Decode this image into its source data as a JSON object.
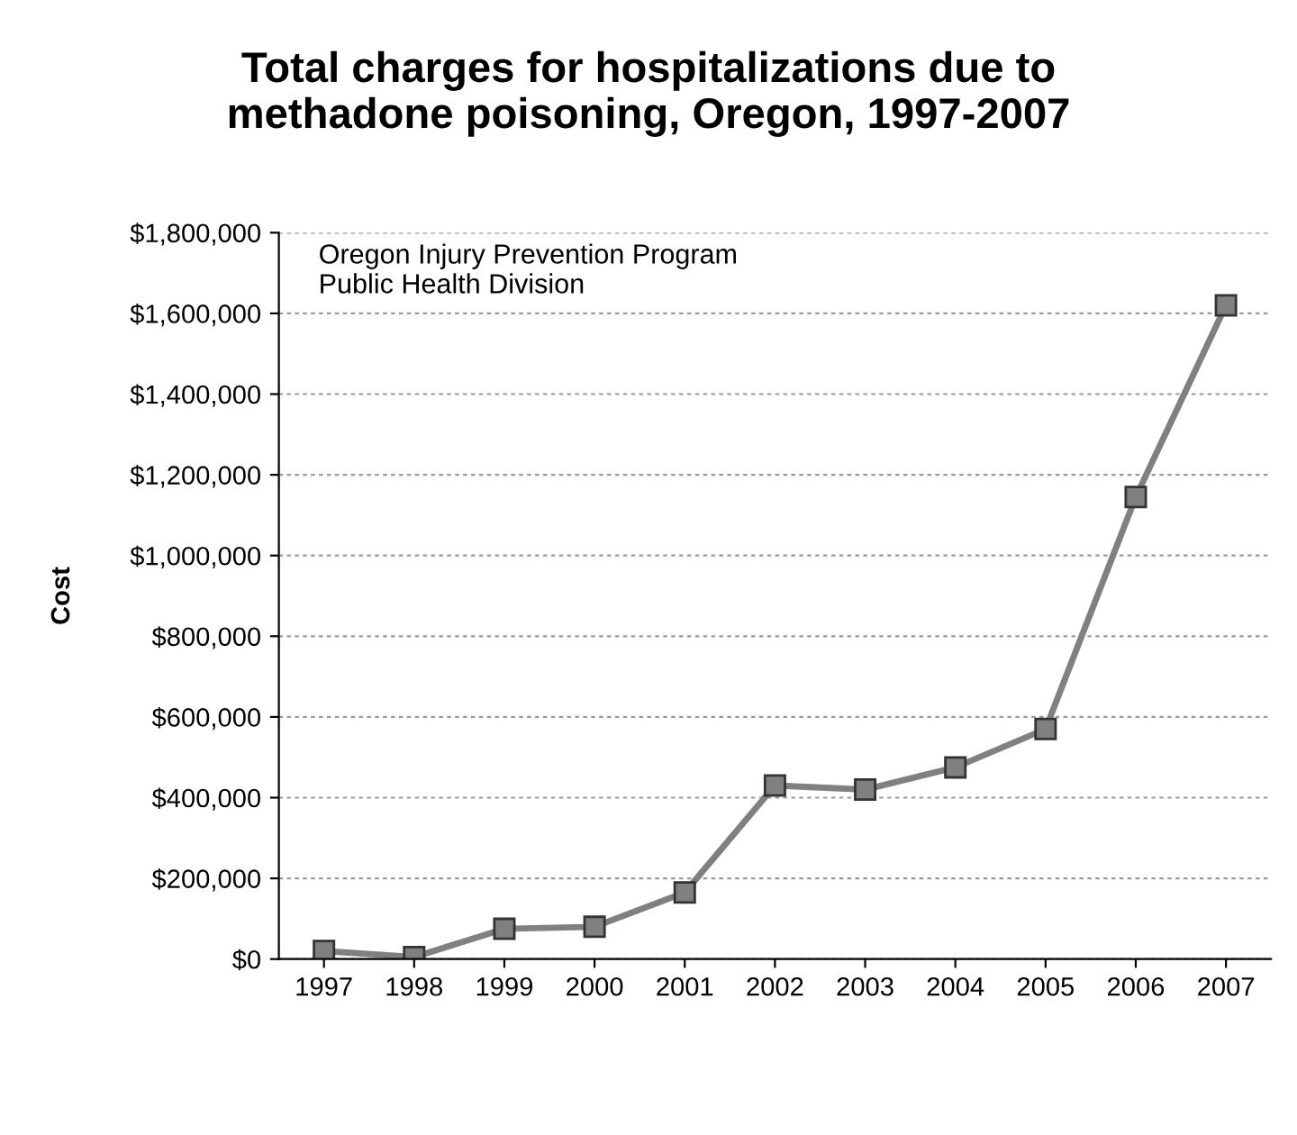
{
  "chart_data": {
    "type": "line",
    "title": "Total charges for hospitalizations due to\nmethadone poisoning, Oregon, 1997-2007",
    "ylabel": "Cost",
    "annotations": [
      "Oregon Injury Prevention Program\nPublic Health Division"
    ],
    "categories": [
      "1997",
      "1998",
      "1999",
      "2000",
      "2001",
      "2002",
      "2003",
      "2004",
      "2005",
      "2006",
      "2007"
    ],
    "series": [
      {
        "color": "#808080",
        "values": [
          20000,
          5000,
          75000,
          80000,
          165000,
          430000,
          420000,
          475000,
          570000,
          1145000,
          1620000
        ]
      }
    ],
    "ylim": [
      0,
      1800000
    ],
    "yticks": [
      {
        "value": 0,
        "label": "$0"
      },
      {
        "value": 200000,
        "label": "$200,000"
      },
      {
        "value": 400000,
        "label": "$400,000"
      },
      {
        "value": 600000,
        "label": "$600,000"
      },
      {
        "value": 800000,
        "label": "$800,000"
      },
      {
        "value": 1000000,
        "label": "$1,000,000"
      },
      {
        "value": 1200000,
        "label": "$1,200,000"
      },
      {
        "value": 1400000,
        "label": "$1,400,000"
      },
      {
        "value": 1600000,
        "label": "$1,600,000"
      },
      {
        "value": 1800000,
        "label": "$1,800,000"
      }
    ],
    "grid": "y",
    "marker": "square",
    "line_style": "solid"
  }
}
